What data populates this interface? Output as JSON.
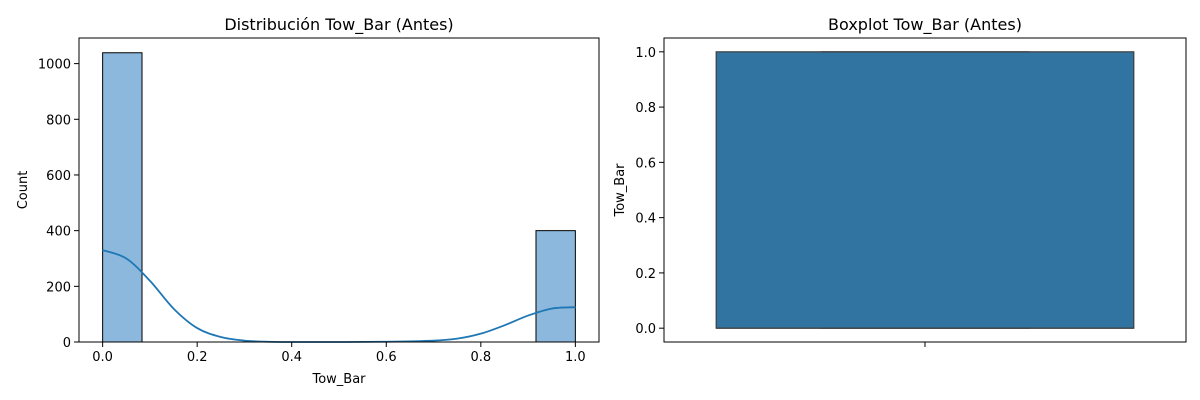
{
  "chart_data": [
    {
      "type": "histogram",
      "title": "Distribución Tow_Bar (Antes)",
      "xlabel": "Tow_Bar",
      "ylabel": "Count",
      "xlim": [
        -0.05,
        1.05
      ],
      "ylim": [
        0,
        1092
      ],
      "xticks": [
        "0.0",
        "0.2",
        "0.4",
        "0.6",
        "0.8",
        "1.0"
      ],
      "yticks": [
        "0",
        "200",
        "400",
        "600",
        "800",
        "1000"
      ],
      "bins": [
        {
          "x0": 0.0,
          "x1": 0.0833,
          "count": 1039
        },
        {
          "x0": 0.9167,
          "x1": 1.0,
          "count": 400
        }
      ],
      "kde": {
        "x": [
          0.0,
          0.05,
          0.1,
          0.15,
          0.2,
          0.25,
          0.3,
          0.35,
          0.4,
          0.5,
          0.6,
          0.7,
          0.75,
          0.8,
          0.85,
          0.9,
          0.95,
          1.0
        ],
        "y": [
          330,
          300,
          220,
          120,
          50,
          18,
          5,
          1,
          0,
          0,
          1,
          5,
          12,
          30,
          60,
          95,
          120,
          125
        ]
      },
      "grid": false,
      "bar_color": "#8bb8dc",
      "line_color": "#1f77b4"
    },
    {
      "type": "boxplot",
      "title": "Boxplot Tow_Bar (Antes)",
      "xlabel": "",
      "ylabel": "Tow_Bar",
      "ylim": [
        -0.05,
        1.05
      ],
      "yticks": [
        "0.0",
        "0.2",
        "0.4",
        "0.6",
        "0.8",
        "1.0"
      ],
      "box": {
        "min": 0.0,
        "q1": 0.0,
        "median": 0.0,
        "q3": 1.0,
        "max": 1.0
      },
      "grid": false,
      "box_color": "#3274a1"
    }
  ]
}
